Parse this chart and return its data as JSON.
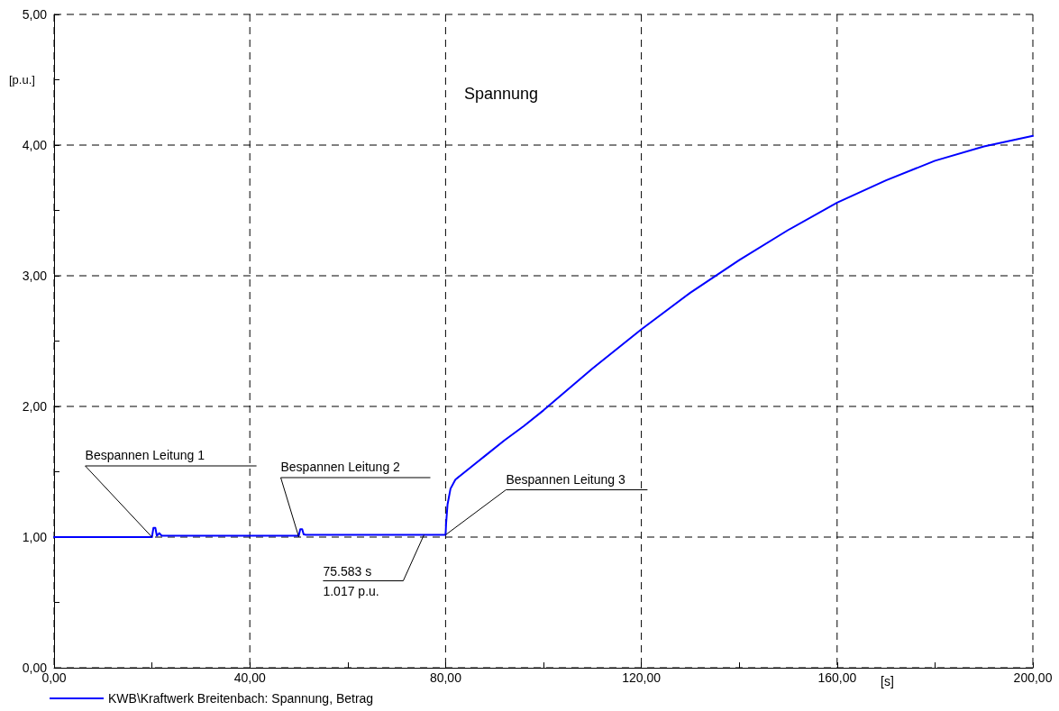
{
  "chart_data": {
    "type": "line",
    "title": "Spannung",
    "xlabel": "[s]",
    "ylabel": "[p.u.]",
    "x": [
      0,
      20,
      20.3,
      20.7,
      21,
      21.5,
      22,
      50,
      50.3,
      50.7,
      51,
      51.5,
      80,
      80.1,
      80.4,
      81,
      82,
      84,
      88,
      92,
      96,
      100,
      110,
      120,
      130,
      140,
      150,
      160,
      170,
      180,
      190,
      200
    ],
    "series": [
      {
        "name": "KWB\\Kraftwerk Breitenbach: Spannung, Betrag",
        "color": "#0000ff",
        "values": [
          1.0,
          1.0,
          1.07,
          1.07,
          1.01,
          1.03,
          1.01,
          1.01,
          1.06,
          1.06,
          1.02,
          1.017,
          1.017,
          1.1,
          1.25,
          1.37,
          1.44,
          1.5,
          1.62,
          1.74,
          1.85,
          1.97,
          2.29,
          2.59,
          2.87,
          3.12,
          3.35,
          3.56,
          3.73,
          3.88,
          3.99,
          4.07
        ]
      }
    ],
    "xlim": [
      0,
      200
    ],
    "ylim": [
      0,
      5
    ],
    "xticks": [
      {
        "value": 0,
        "label": "0,00"
      },
      {
        "value": 20,
        "label": null
      },
      {
        "value": 40,
        "label": "40,00"
      },
      {
        "value": 60,
        "label": null
      },
      {
        "value": 80,
        "label": "80,00"
      },
      {
        "value": 100,
        "label": null
      },
      {
        "value": 120,
        "label": "120,00"
      },
      {
        "value": 140,
        "label": null
      },
      {
        "value": 160,
        "label": "160,00"
      },
      {
        "value": 180,
        "label": null
      },
      {
        "value": 200,
        "label": "200,00"
      }
    ],
    "yticks": [
      {
        "value": 0,
        "label": "0,00"
      },
      {
        "value": 0.5,
        "label": null
      },
      {
        "value": 1,
        "label": "1,00"
      },
      {
        "value": 1.5,
        "label": null
      },
      {
        "value": 2,
        "label": "2,00"
      },
      {
        "value": 2.5,
        "label": null
      },
      {
        "value": 3,
        "label": "3,00"
      },
      {
        "value": 3.5,
        "label": null
      },
      {
        "value": 4,
        "label": "4,00"
      },
      {
        "value": 4.5,
        "label": null
      },
      {
        "value": 5,
        "label": "5,00"
      }
    ],
    "grid": true,
    "legend": "bottom left",
    "marker": "none",
    "line_style": "solid",
    "annotations": [
      {
        "text": "Bespannen Leitung 1",
        "x": 20,
        "y": 1.0
      },
      {
        "text": "Bespannen Leitung 2",
        "x": 50,
        "y": 1.0
      },
      {
        "text": "Bespannen Leitung 3",
        "x": 80,
        "y": 1.017
      },
      {
        "text": "75.583 s\n1.017 p.u.",
        "x": 75.583,
        "y": 1.017
      }
    ]
  }
}
